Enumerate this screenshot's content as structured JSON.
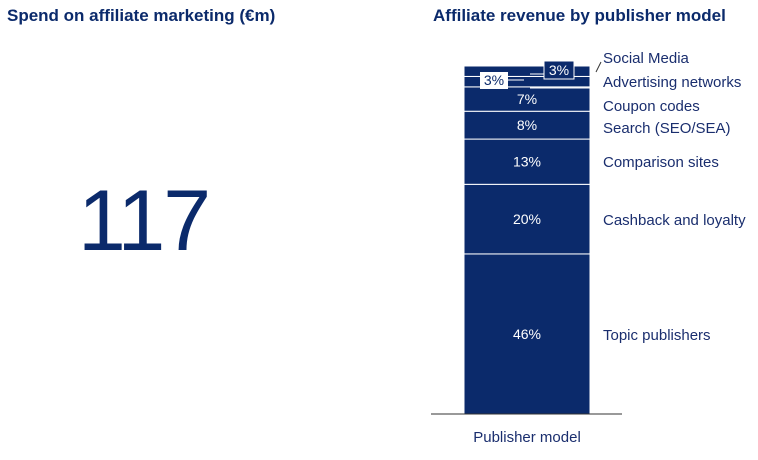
{
  "left_panel": {
    "title": "Spend on affiliate marketing (€m)",
    "value": "117"
  },
  "colors": {
    "bar": "#0b2a6b",
    "segment_line": "#ffffff",
    "text": "#1a2e6e"
  },
  "chart_data": {
    "type": "bar",
    "stacked": true,
    "title": "Affiliate revenue by publisher model",
    "categories": [
      "Publisher model"
    ],
    "ylim": [
      0,
      100
    ],
    "series": [
      {
        "name": "Topic publishers",
        "values": [
          46
        ],
        "label": "46%"
      },
      {
        "name": "Cashback and loyalty",
        "values": [
          20
        ],
        "label": "20%"
      },
      {
        "name": "Comparison sites",
        "values": [
          13
        ],
        "label": "13%"
      },
      {
        "name": "Search (SEO/SEA)",
        "values": [
          8
        ],
        "label": "8%"
      },
      {
        "name": "Coupon codes",
        "values": [
          7
        ],
        "label": "7%"
      },
      {
        "name": "Advertising networks",
        "values": [
          3
        ],
        "label": "3%"
      },
      {
        "name": "Social Media",
        "values": [
          3
        ],
        "label": "3%"
      }
    ]
  }
}
